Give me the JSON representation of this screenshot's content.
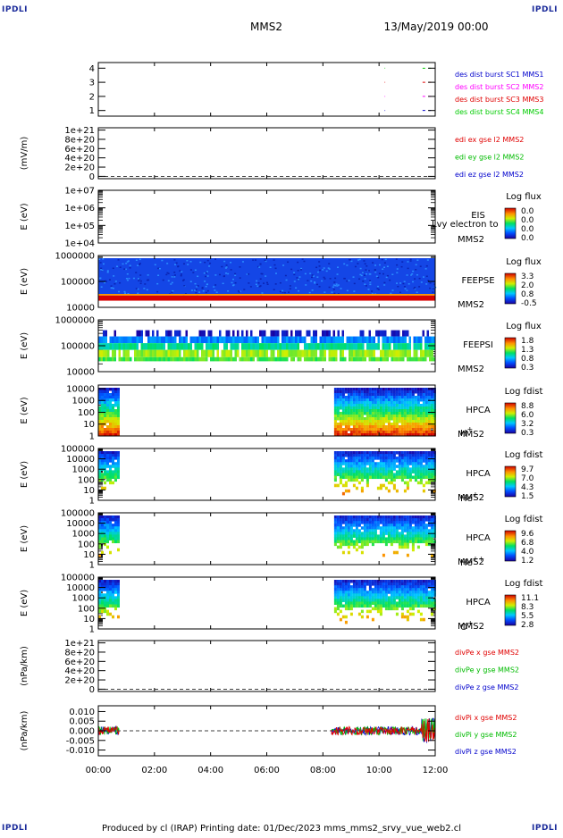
{
  "header": {
    "corner_label": "IPDLI",
    "spacecraft": "MMS2",
    "date": "13/May/2019 00:00"
  },
  "footer": {
    "text": "Produced by cl (IRAP)   Printing date: 01/Dec/2023   mms_mms2_srvy_vue_web2.cl"
  },
  "time_axis": {
    "start_hours": 0,
    "end_hours": 12,
    "tick_labels": [
      "00:00",
      "02:00",
      "04:00",
      "06:00",
      "08:00",
      "10:00",
      "12:00"
    ]
  },
  "chart_data": [
    {
      "type": "scatter",
      "id": "burst",
      "ylabel": "",
      "yticks": [
        "1",
        "2",
        "3",
        "4"
      ],
      "ylim": [
        0.6,
        4.4
      ],
      "legend": [
        {
          "label": "des dist burst SC1 MMS1",
          "color": "#0000cc"
        },
        {
          "label": "des dist burst SC2 MMS2",
          "color": "#ff00ff"
        },
        {
          "label": "des dist burst SC3 MMS3",
          "color": "#e00000"
        },
        {
          "label": "des dist burst SC4 MMS4",
          "color": "#00cc00"
        }
      ],
      "series": [
        {
          "sc": 1,
          "y": 1,
          "intervals": [
            [
              10.2,
              10.22
            ],
            [
              11.55,
              11.85
            ]
          ]
        },
        {
          "sc": 2,
          "y": 2,
          "intervals": [
            [
              10.2,
              10.22
            ],
            [
              11.55,
              11.85
            ]
          ]
        },
        {
          "sc": 3,
          "y": 3,
          "intervals": [
            [
              10.2,
              10.22
            ],
            [
              11.55,
              11.85
            ]
          ]
        },
        {
          "sc": 4,
          "y": 4,
          "intervals": [
            [
              10.2,
              10.22
            ],
            [
              11.55,
              11.85
            ]
          ]
        }
      ]
    },
    {
      "type": "line",
      "id": "edi",
      "ylabel": "(mV/m)",
      "yticks": [
        "0",
        "2e+20",
        "4e+20",
        "6e+20",
        "8e+20",
        "1e+21"
      ],
      "ylim": [
        -5e+19,
        1.05e+21
      ],
      "zero_line": true,
      "legend": [
        {
          "label": "edi ex gse l2 MMS2",
          "color": "#e00000"
        },
        {
          "label": "edi ey gse l2 MMS2",
          "color": "#00bb00"
        },
        {
          "label": "edi ez gse l2 MMS2",
          "color": "#0000cc"
        }
      ]
    },
    {
      "type": "heatmap",
      "id": "eis",
      "ylabel": "E (eV)",
      "yticks": [
        "1e+04",
        "1e+05",
        "1e+06",
        "1e+07"
      ],
      "log_decades": [
        4,
        7
      ],
      "right_labels": [
        "EIS",
        "MMS2"
      ],
      "overlay_text": "Lvy electron to",
      "colorbar": {
        "title": "Log flux",
        "ticks": [
          "0.0",
          "0.0",
          "0.0",
          "0.0"
        ]
      },
      "coverage": []
    },
    {
      "type": "heatmap",
      "id": "feepse",
      "ylabel": "E (eV)",
      "yticks": [
        "10000",
        "100000",
        "1000000"
      ],
      "log_decades": [
        4,
        6
      ],
      "right_labels": [
        "FEEPSE",
        "MMS2"
      ],
      "colorbar": {
        "title": "Log flux",
        "ticks": [
          "3.3",
          "2.0",
          "0.8",
          "-0.5"
        ]
      },
      "coverage": [
        [
          0,
          12
        ]
      ]
    },
    {
      "type": "heatmap",
      "id": "feepsi",
      "ylabel": "E (eV)",
      "yticks": [
        "10000",
        "100000",
        "1000000"
      ],
      "log_decades": [
        4,
        6
      ],
      "right_labels": [
        "FEEPSI",
        "MMS2"
      ],
      "colorbar": {
        "title": "Log flux",
        "ticks": [
          "1.8",
          "1.3",
          "0.8",
          "0.3"
        ]
      },
      "coverage": [
        [
          0,
          12
        ]
      ]
    },
    {
      "type": "heatmap",
      "id": "hpca-h",
      "ylabel": "E (eV)",
      "yticks": [
        "1",
        "10",
        "100",
        "1000",
        "10000"
      ],
      "log_decades": [
        0,
        4.3
      ],
      "right_labels": [
        "HPCA",
        "MMS2"
      ],
      "species": "H",
      "species_sup": "+",
      "colorbar": {
        "title": "Log fdist",
        "ticks": [
          "8.8",
          "6.0",
          "3.2",
          "0.3"
        ]
      },
      "coverage": [
        [
          0,
          0.75
        ],
        [
          8.4,
          12
        ]
      ]
    },
    {
      "type": "heatmap",
      "id": "hpca-he",
      "ylabel": "E (eV)",
      "yticks": [
        "1",
        "10",
        "100",
        "1000",
        "10000",
        "100000"
      ],
      "log_decades": [
        0,
        5
      ],
      "right_labels": [
        "HPCA",
        "MMS2"
      ],
      "species": "He",
      "species_sup": "+",
      "colorbar": {
        "title": "Log fdist",
        "ticks": [
          "9.7",
          "7.0",
          "4.3",
          "1.5"
        ]
      },
      "coverage": [
        [
          0,
          0.75
        ],
        [
          8.4,
          12
        ]
      ]
    },
    {
      "type": "heatmap",
      "id": "hpca-hepp",
      "ylabel": "E (eV)",
      "yticks": [
        "1",
        "10",
        "100",
        "1000",
        "10000",
        "100000"
      ],
      "log_decades": [
        0,
        5
      ],
      "right_labels": [
        "HPCA",
        "MMS2"
      ],
      "species": "He",
      "species_sup": "++",
      "colorbar": {
        "title": "Log fdist",
        "ticks": [
          "9.6",
          "6.8",
          "4.0",
          "1.2"
        ]
      },
      "coverage": [
        [
          0,
          0.75
        ],
        [
          8.4,
          12
        ]
      ]
    },
    {
      "type": "heatmap",
      "id": "hpca-o",
      "ylabel": "E (eV)",
      "yticks": [
        "1",
        "10",
        "100",
        "1000",
        "10000",
        "100000"
      ],
      "log_decades": [
        0,
        5
      ],
      "right_labels": [
        "HPCA",
        "MMS2"
      ],
      "species": "O",
      "species_sup": "+",
      "colorbar": {
        "title": "Log fdist",
        "ticks": [
          "11.1",
          "8.3",
          "5.5",
          "2.8"
        ]
      },
      "coverage": [
        [
          0,
          0.75
        ],
        [
          8.4,
          12
        ]
      ]
    },
    {
      "type": "line",
      "id": "divpe",
      "ylabel": "(nPa/km)",
      "yticks": [
        "0",
        "2e+20",
        "4e+20",
        "6e+20",
        "8e+20",
        "1e+21"
      ],
      "ylim": [
        -5e+19,
        1.05e+21
      ],
      "zero_line": true,
      "legend": [
        {
          "label": "divPe x gse MMS2",
          "color": "#e00000"
        },
        {
          "label": "divPe y gse MMS2",
          "color": "#00bb00"
        },
        {
          "label": "divPe z gse MMS2",
          "color": "#0000cc"
        }
      ]
    },
    {
      "type": "line",
      "id": "divpi",
      "ylabel": "(nPa/km)",
      "yticks": [
        "-0.010",
        "-0.005",
        "0.000",
        "0.005",
        "0.010"
      ],
      "ylim": [
        -0.013,
        0.013
      ],
      "zero_line": true,
      "coverage": [
        [
          0,
          0.75
        ],
        [
          8.3,
          12
        ]
      ],
      "legend": [
        {
          "label": "divPi x gse MMS2",
          "color": "#e00000"
        },
        {
          "label": "divPi y gse MMS2",
          "color": "#00bb00"
        },
        {
          "label": "divPi z gse MMS2",
          "color": "#0000cc"
        }
      ]
    }
  ]
}
